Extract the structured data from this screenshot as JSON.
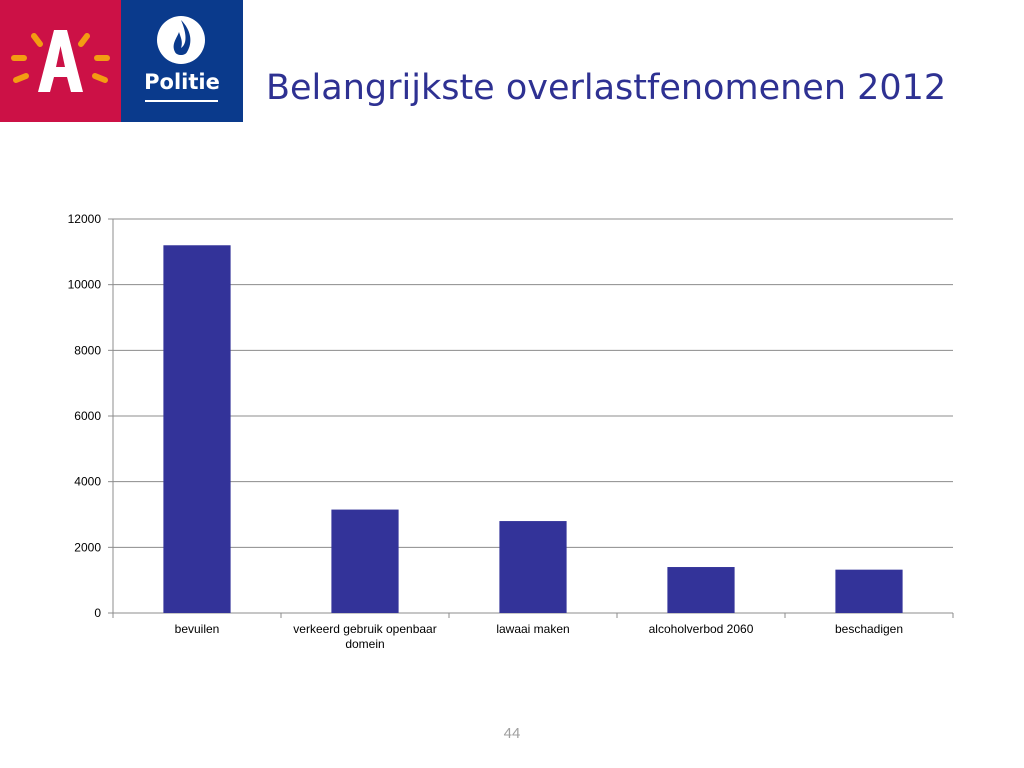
{
  "slide": {
    "title": "Belangrijkste overlastfenomenen 2012",
    "page_number": "44"
  },
  "logos": {
    "police_label": "Politie",
    "antwerp_letter": "A"
  },
  "colors": {
    "title": "#2e3192",
    "bar": "#333399",
    "antwerp_red": "#cc1146",
    "antwerp_sun": "#f39c12",
    "police_blue": "#0a3a8c",
    "gridline": "#8c8c8c"
  },
  "chart_data": {
    "type": "bar",
    "categories": [
      [
        "bevuilen"
      ],
      [
        "verkeerd gebruik openbaar",
        "domein"
      ],
      [
        "lawaai maken"
      ],
      [
        "alcoholverbod 2060"
      ],
      [
        "beschadigen"
      ]
    ],
    "values": [
      11200,
      3150,
      2800,
      1400,
      1320
    ],
    "ylim": [
      0,
      12000
    ],
    "yticks": [
      0,
      2000,
      4000,
      6000,
      8000,
      10000,
      12000
    ],
    "grid": true,
    "legend": "none"
  }
}
